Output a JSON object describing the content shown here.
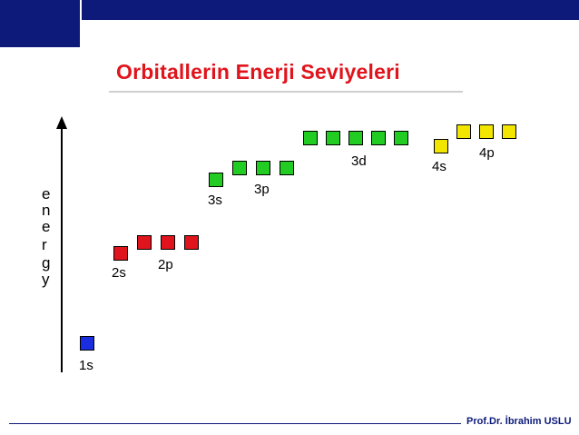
{
  "header": {
    "bar_color": "#0d1a7a"
  },
  "title": "Orbitallerin Enerji Seviyeleri",
  "axis": {
    "letters": [
      "e",
      "n",
      "e",
      "r",
      "g",
      "y"
    ]
  },
  "orbitals": {
    "1s": {
      "label": "1s",
      "color": "#1a2ee0",
      "boxes": 1
    },
    "2s": {
      "label": "2s",
      "color": "#e0141c",
      "boxes": 1
    },
    "2p": {
      "label": "2p",
      "color": "#e0141c",
      "boxes": 3
    },
    "3s": {
      "label": "3s",
      "color": "#22cc22",
      "boxes": 1
    },
    "3p": {
      "label": "3p",
      "color": "#22cc22",
      "boxes": 3
    },
    "3d": {
      "label": "3d",
      "color": "#22cc22",
      "boxes": 5
    },
    "4s": {
      "label": "4s",
      "color": "#f2e600",
      "boxes": 1
    },
    "4p": {
      "label": "4p",
      "color": "#f2e600",
      "boxes": 3
    }
  },
  "footer": "Prof.Dr. İbrahim USLU"
}
